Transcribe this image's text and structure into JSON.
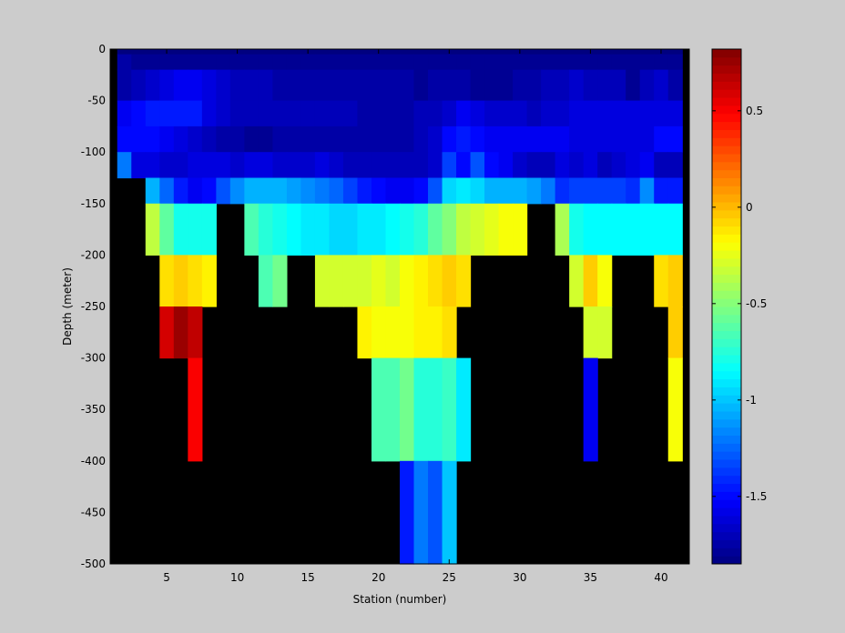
{
  "chart_data": {
    "type": "heatmap",
    "xlabel": "Station (number)",
    "ylabel": "Depth (meter)",
    "xlim": [
      1,
      42
    ],
    "ylim": [
      -500,
      0
    ],
    "x_ticks": [
      5,
      10,
      15,
      20,
      25,
      30,
      35,
      40
    ],
    "y_ticks": [
      0,
      -50,
      -100,
      -150,
      -200,
      -250,
      -300,
      -350,
      -400,
      -450,
      -500
    ],
    "x_tick_labels": [
      "5",
      "10",
      "15",
      "20",
      "25",
      "30",
      "35",
      "40"
    ],
    "y_tick_labels": [
      "0",
      "-50",
      "-100",
      "-150",
      "-200",
      "-250",
      "-300",
      "-350",
      "-400",
      "-450",
      "-500"
    ],
    "colorbar": {
      "colormap": "jet",
      "clim": [
        -1.85,
        0.82
      ],
      "ticks": [
        0.5,
        0,
        -0.5,
        -1,
        -1.5
      ],
      "tick_labels": [
        "0.5",
        "0",
        "-0.5",
        "-1",
        "-1.5"
      ]
    },
    "missing_color": "#000000",
    "background_color": "#cccccc",
    "stations": [
      2,
      3,
      4,
      5,
      6,
      7,
      8,
      9,
      10,
      11,
      12,
      13,
      14,
      15,
      16,
      17,
      18,
      19,
      20,
      21,
      22,
      23,
      24,
      25,
      26,
      27,
      28,
      29,
      30,
      31,
      32,
      33,
      34,
      35,
      36,
      37,
      38,
      39,
      40,
      41
    ],
    "depth_bins": [
      [
        0,
        -5
      ],
      [
        -5,
        -20
      ],
      [
        -20,
        -50
      ],
      [
        -50,
        -75
      ],
      [
        -75,
        -100
      ],
      [
        -100,
        -125
      ],
      [
        -125,
        -150
      ],
      [
        -150,
        -200
      ],
      [
        -200,
        -250
      ],
      [
        -250,
        -300
      ],
      [
        -300,
        -400
      ],
      [
        -400,
        -500
      ]
    ],
    "values": [
      [
        -1.85,
        -1.85,
        -1.85,
        -1.85,
        -1.85,
        -1.85,
        -1.85,
        -1.85,
        -1.85,
        -1.85,
        -1.85,
        -1.85,
        -1.85,
        -1.85,
        -1.85,
        -1.85,
        -1.85,
        -1.85,
        -1.85,
        -1.85,
        -1.85,
        -1.85,
        -1.85,
        -1.85,
        -1.85,
        -1.85,
        -1.85,
        -1.85,
        -1.85,
        -1.85,
        -1.85,
        -1.85,
        -1.85,
        -1.85,
        -1.85,
        -1.85,
        -1.85,
        -1.85,
        -1.85,
        -1.85
      ],
      [
        -1.75,
        -1.8,
        -1.8,
        -1.8,
        -1.8,
        -1.8,
        -1.8,
        -1.8,
        -1.8,
        -1.8,
        -1.8,
        -1.8,
        -1.8,
        -1.8,
        -1.8,
        -1.8,
        -1.8,
        -1.8,
        -1.8,
        -1.8,
        -1.8,
        -1.8,
        -1.8,
        -1.8,
        -1.8,
        -1.8,
        -1.8,
        -1.8,
        -1.8,
        -1.8,
        -1.8,
        -1.8,
        -1.8,
        -1.8,
        -1.8,
        -1.8,
        -1.8,
        -1.8,
        -1.8,
        -1.8
      ],
      [
        -1.75,
        -1.7,
        -1.65,
        -1.6,
        -1.55,
        -1.55,
        -1.6,
        -1.65,
        -1.7,
        -1.7,
        -1.7,
        -1.75,
        -1.75,
        -1.75,
        -1.75,
        -1.75,
        -1.75,
        -1.75,
        -1.75,
        -1.75,
        -1.75,
        -1.8,
        -1.75,
        -1.75,
        -1.75,
        -1.8,
        -1.8,
        -1.8,
        -1.75,
        -1.75,
        -1.7,
        -1.7,
        -1.65,
        -1.7,
        -1.7,
        -1.7,
        -1.8,
        -1.7,
        -1.65,
        -1.75
      ],
      [
        -1.55,
        -1.5,
        -1.45,
        -1.45,
        -1.45,
        -1.45,
        -1.6,
        -1.65,
        -1.7,
        -1.7,
        -1.7,
        -1.7,
        -1.7,
        -1.7,
        -1.7,
        -1.7,
        -1.7,
        -1.75,
        -1.75,
        -1.75,
        -1.75,
        -1.7,
        -1.7,
        -1.65,
        -1.55,
        -1.6,
        -1.65,
        -1.65,
        -1.65,
        -1.7,
        -1.65,
        -1.65,
        -1.6,
        -1.6,
        -1.6,
        -1.6,
        -1.6,
        -1.6,
        -1.6,
        -1.6
      ],
      [
        -1.5,
        -1.5,
        -1.5,
        -1.55,
        -1.6,
        -1.65,
        -1.7,
        -1.75,
        -1.75,
        -1.8,
        -1.8,
        -1.75,
        -1.75,
        -1.75,
        -1.75,
        -1.75,
        -1.75,
        -1.75,
        -1.75,
        -1.75,
        -1.75,
        -1.7,
        -1.65,
        -1.5,
        -1.45,
        -1.5,
        -1.55,
        -1.55,
        -1.55,
        -1.55,
        -1.55,
        -1.55,
        -1.6,
        -1.6,
        -1.6,
        -1.6,
        -1.6,
        -1.6,
        -1.5,
        -1.5
      ],
      [
        -1.2,
        -1.6,
        -1.6,
        -1.65,
        -1.65,
        -1.6,
        -1.6,
        -1.6,
        -1.65,
        -1.6,
        -1.6,
        -1.65,
        -1.65,
        -1.65,
        -1.6,
        -1.65,
        -1.7,
        -1.7,
        -1.7,
        -1.7,
        -1.7,
        -1.7,
        -1.65,
        -1.35,
        -1.5,
        -1.3,
        -1.5,
        -1.55,
        -1.65,
        -1.7,
        -1.7,
        -1.6,
        -1.65,
        -1.6,
        -1.7,
        -1.65,
        -1.6,
        -1.55,
        -1.7,
        -1.7
      ],
      [
        null,
        null,
        -1.05,
        -1.25,
        -1.45,
        -1.55,
        -1.5,
        -1.3,
        -1.15,
        -1.05,
        -1.05,
        -1.05,
        -1.1,
        -1.15,
        -1.2,
        -1.25,
        -1.35,
        -1.45,
        -1.5,
        -1.55,
        -1.55,
        -1.5,
        -1.3,
        -0.95,
        -0.9,
        -0.95,
        -1.05,
        -1.05,
        -1.05,
        -1.1,
        -1.2,
        -1.4,
        -1.35,
        -1.35,
        -1.35,
        -1.35,
        -1.4,
        -1.15,
        -1.45,
        -1.45
      ],
      [
        null,
        null,
        -0.35,
        -0.6,
        -0.8,
        -0.8,
        -0.8,
        null,
        null,
        -0.65,
        -0.75,
        -0.8,
        -0.85,
        -0.9,
        -0.9,
        -0.95,
        -0.95,
        -0.9,
        -0.9,
        -0.85,
        -0.8,
        -0.75,
        -0.6,
        -0.5,
        -0.35,
        -0.3,
        -0.25,
        -0.2,
        -0.2,
        null,
        null,
        -0.4,
        -0.8,
        -0.85,
        -0.85,
        -0.85,
        -0.85,
        -0.85,
        -0.85,
        -0.85
      ],
      [
        null,
        null,
        null,
        -0.1,
        -0.05,
        -0.1,
        -0.15,
        null,
        null,
        null,
        -0.65,
        -0.55,
        null,
        null,
        -0.3,
        -0.3,
        -0.3,
        -0.3,
        -0.25,
        -0.3,
        -0.2,
        -0.15,
        -0.1,
        -0.05,
        -0.1,
        null,
        null,
        null,
        null,
        null,
        null,
        null,
        -0.3,
        -0.05,
        -0.2,
        null,
        null,
        null,
        -0.1,
        -0.05
      ],
      [
        null,
        null,
        null,
        0.6,
        0.75,
        0.65,
        null,
        null,
        null,
        null,
        null,
        null,
        null,
        null,
        null,
        null,
        null,
        -0.15,
        -0.2,
        -0.2,
        -0.2,
        -0.15,
        -0.15,
        -0.1,
        null,
        null,
        null,
        null,
        null,
        null,
        null,
        null,
        null,
        -0.3,
        -0.3,
        null,
        null,
        null,
        null,
        -0.05
      ],
      [
        null,
        null,
        null,
        null,
        null,
        0.5,
        null,
        null,
        null,
        null,
        null,
        null,
        null,
        null,
        null,
        null,
        null,
        null,
        -0.65,
        -0.65,
        -0.55,
        -0.75,
        -0.75,
        -0.7,
        -0.9,
        null,
        null,
        null,
        null,
        null,
        null,
        null,
        null,
        -1.55,
        null,
        null,
        null,
        null,
        null,
        -0.2
      ],
      [
        null,
        null,
        null,
        null,
        null,
        null,
        null,
        null,
        null,
        null,
        null,
        null,
        null,
        null,
        null,
        null,
        null,
        null,
        null,
        null,
        -1.45,
        -1.2,
        -1.3,
        -1.0,
        null,
        null,
        null,
        null,
        null,
        null,
        null,
        null,
        null,
        null,
        null,
        null,
        null,
        null,
        null,
        null
      ]
    ]
  }
}
